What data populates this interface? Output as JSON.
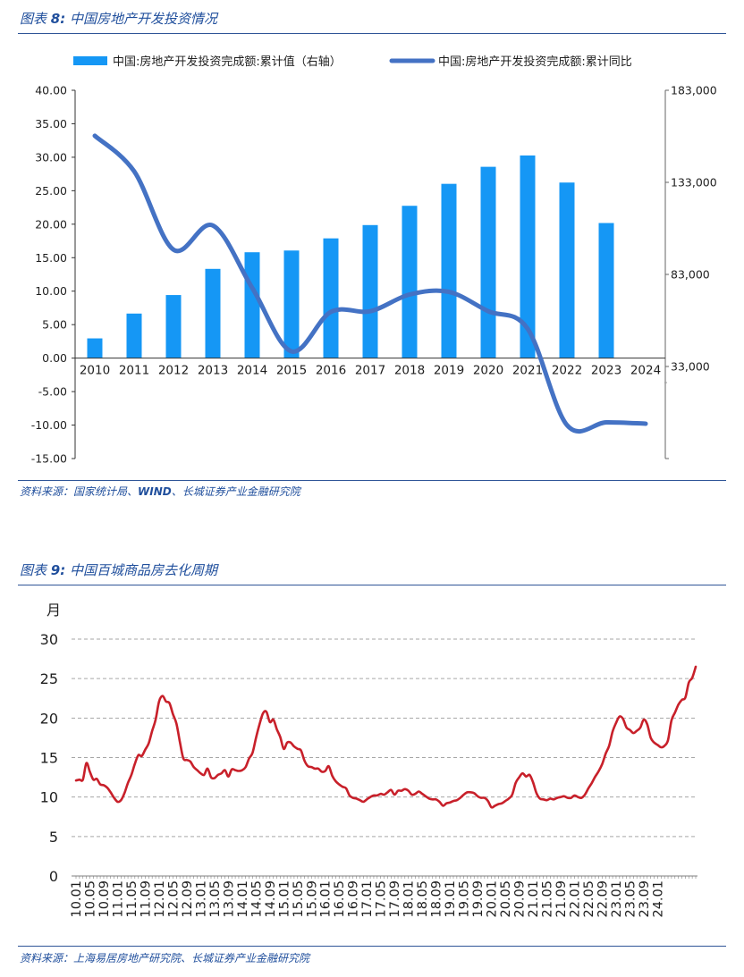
{
  "figure8": {
    "title_prefix": "图表",
    "title_number": "8:",
    "title_text": "中国房地产开发投资情况",
    "source_prefix": "资料来源：国家统计局、",
    "source_bold": "WIND",
    "source_suffix": "、长城证券产业金融研究院"
  },
  "figure9": {
    "title_prefix": "图表",
    "title_number": "9:",
    "title_text": "中国百城商品房去化周期",
    "source": "资料来源：上海易居房地产研究院、长城证券产业金融研究院"
  },
  "colors": {
    "bar": "#1597f5",
    "line8": "#4472c4",
    "line9": "#c8202a",
    "accent": "#2f5597"
  },
  "chart_data": [
    {
      "type": "bar",
      "categories": [
        "2010",
        "2011",
        "2012",
        "2013",
        "2014",
        "2015",
        "2016",
        "2017",
        "2018",
        "2019",
        "2020",
        "2021",
        "2022",
        "2023",
        "2024"
      ],
      "series": [
        {
          "name": "中国:房地产开发投资完成额:累计值（右轴）",
          "type": "bar",
          "axis": "right",
          "values": [
            48267,
            61740,
            71804,
            86013,
            95036,
            95979,
            102581,
            109799,
            120264,
            132194,
            141443,
            147602,
            132895,
            110913,
            30090
          ]
        },
        {
          "name": "中国:房地产开发投资完成额:累计同比",
          "type": "line",
          "axis": "left",
          "values": [
            33.2,
            27.9,
            16.2,
            19.8,
            10.5,
            1.0,
            6.9,
            7.0,
            9.5,
            9.9,
            7.0,
            4.4,
            -10.0,
            -9.6,
            -9.8
          ]
        }
      ],
      "left_axis": {
        "ylim": [
          -15,
          40
        ],
        "ticks": [
          "40.00",
          "35.00",
          "30.00",
          "25.00",
          "20.00",
          "15.00",
          "10.00",
          "5.00",
          "0.00",
          "-5.00",
          "-10.00",
          "-15.00"
        ]
      },
      "right_axis": {
        "ylim": [
          -17000,
          183000
        ],
        "ticks": [
          "183,000",
          "133,000",
          "83,000",
          "33,000"
        ]
      },
      "legend_position": "top",
      "grid": false
    },
    {
      "type": "line",
      "ylabel": "月",
      "ylim": [
        0,
        30
      ],
      "yticks": [
        "30",
        "25",
        "20",
        "15",
        "10",
        "5",
        "0"
      ],
      "x_tick_labels": [
        "10.01",
        "10.05",
        "10.09",
        "11.01",
        "11.05",
        "11.09",
        "12.01",
        "12.05",
        "12.09",
        "13.01",
        "13.05",
        "13.09",
        "14.01",
        "14.05",
        "14.09",
        "15.01",
        "15.05",
        "15.09",
        "16.01",
        "16.05",
        "16.09",
        "17.01",
        "17.05",
        "17.09",
        "18.01",
        "18.05",
        "18.09",
        "19.01",
        "19.05",
        "19.09",
        "20.01",
        "20.05",
        "20.09",
        "21.01",
        "21.05",
        "21.09",
        "22.01",
        "22.05",
        "22.09",
        "23.01",
        "23.05",
        "23.09",
        "24.01"
      ],
      "grid": true,
      "series": [
        {
          "values": [
            12.1,
            12.2,
            12.2,
            14.3,
            13.2,
            12.2,
            12.3,
            11.6,
            11.5,
            11.2,
            10.6,
            9.9,
            9.4,
            9.6,
            10.5,
            11.8,
            12.8,
            14.2,
            15.3,
            15.2,
            16.0,
            16.8,
            18.4,
            19.8,
            22.1,
            22.8,
            22.1,
            21.9,
            20.5,
            19.3,
            17.0,
            14.9,
            14.7,
            14.5,
            13.8,
            13.4,
            13.0,
            12.8,
            13.6,
            12.5,
            12.4,
            12.8,
            13.0,
            13.4,
            12.6,
            13.5,
            13.4,
            13.3,
            13.4,
            13.8,
            14.9,
            15.6,
            17.5,
            19.2,
            20.6,
            20.8,
            19.5,
            19.8,
            18.6,
            17.6,
            16.1,
            16.9,
            16.9,
            16.4,
            16.1,
            15.9,
            14.6,
            13.9,
            13.8,
            13.6,
            13.6,
            13.2,
            13.3,
            13.9,
            12.7,
            12.0,
            11.6,
            11.3,
            11.1,
            10.2,
            9.9,
            9.8,
            9.6,
            9.4,
            9.7,
            10.0,
            10.2,
            10.2,
            10.4,
            10.3,
            10.6,
            10.9,
            10.3,
            10.8,
            10.8,
            11.0,
            10.8,
            10.3,
            10.4,
            10.7,
            10.4,
            10.1,
            9.8,
            9.7,
            9.7,
            9.4,
            8.9,
            9.2,
            9.3,
            9.5,
            9.6,
            9.9,
            10.3,
            10.6,
            10.6,
            10.5,
            10.1,
            9.9,
            9.9,
            9.5,
            8.7,
            8.9,
            9.1,
            9.2,
            9.5,
            9.8,
            10.3,
            11.8,
            12.5,
            13.0,
            12.6,
            12.8,
            11.9,
            10.5,
            9.8,
            9.7,
            9.6,
            9.8,
            9.7,
            9.9,
            10.0,
            10.1,
            9.9,
            9.9,
            10.2,
            10.0,
            9.9,
            10.3,
            11.1,
            11.8,
            12.6,
            13.3,
            14.2,
            15.5,
            16.5,
            18.3,
            19.4,
            20.2,
            19.9,
            18.8,
            18.5,
            18.1,
            18.4,
            18.8,
            19.8,
            19.2,
            17.5,
            16.9,
            16.6,
            16.3,
            16.5,
            17.2,
            19.7,
            20.7,
            21.7,
            22.3,
            22.6,
            24.5,
            25.1,
            26.5
          ]
        }
      ]
    }
  ]
}
